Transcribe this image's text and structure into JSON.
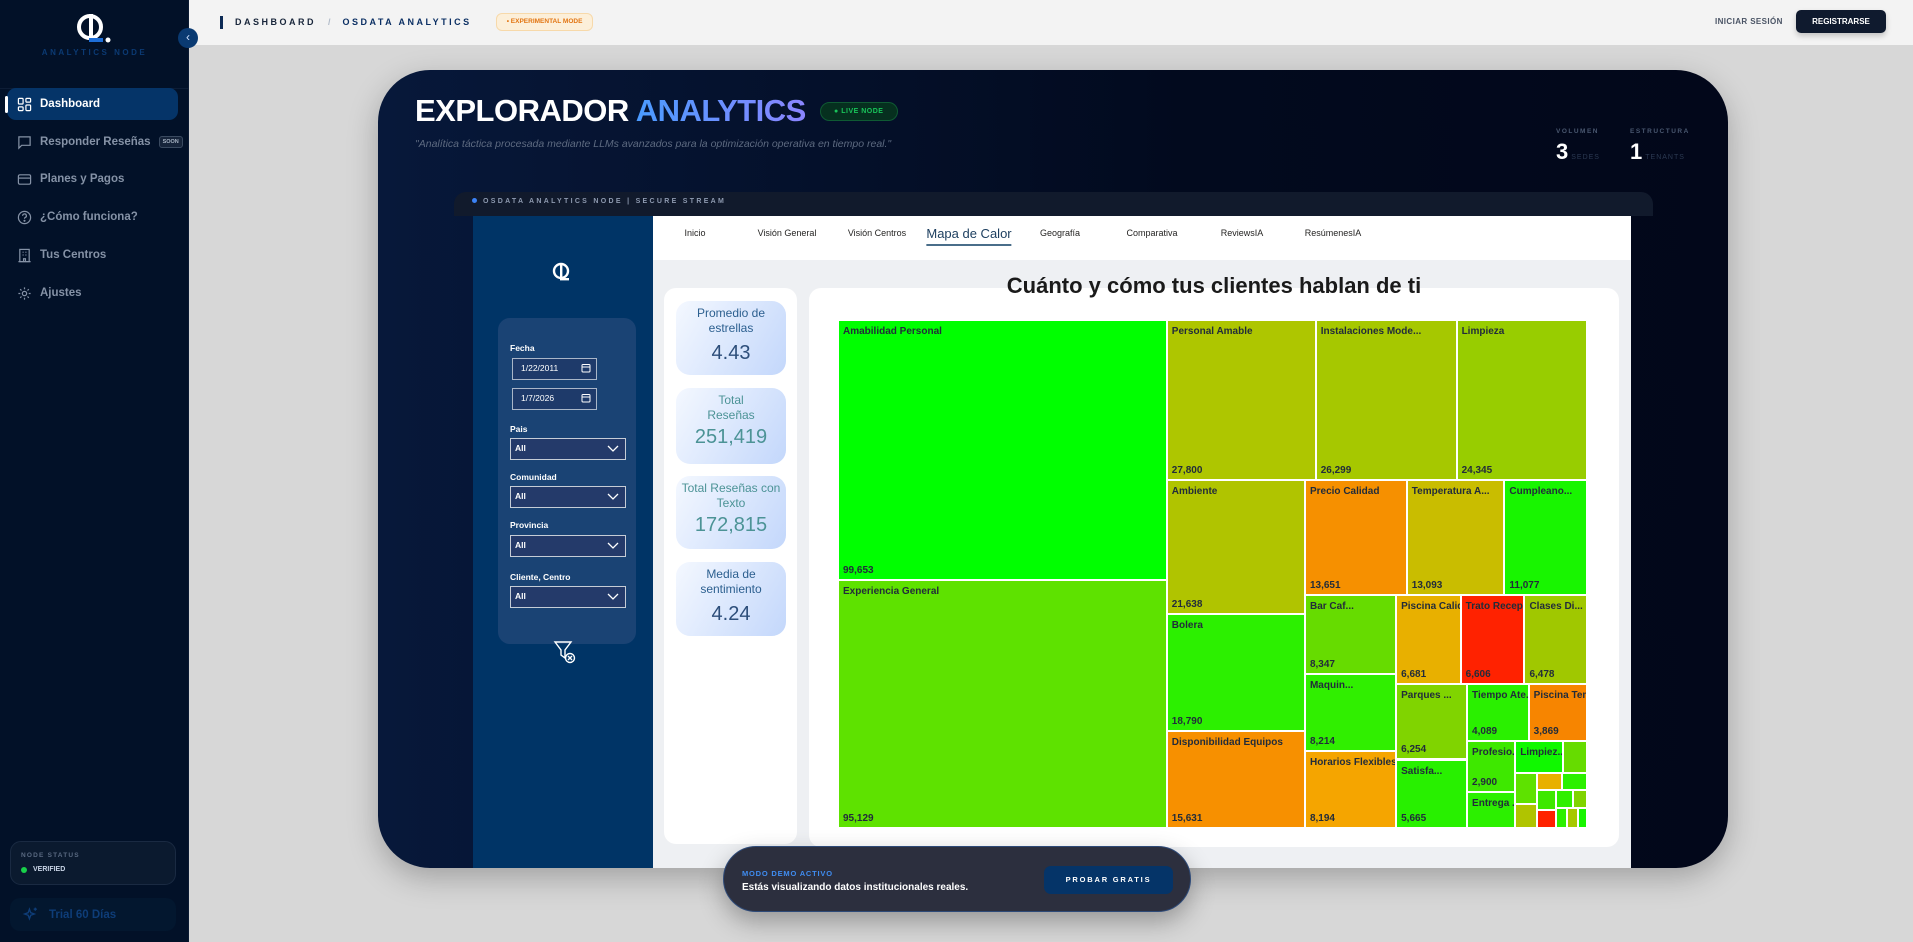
{
  "sidebar": {
    "brand": "ANALYTICS NODE",
    "items": [
      {
        "label": "Dashboard",
        "icon": "dashboard-grid-icon",
        "active": true
      },
      {
        "label": "Responder Reseñas",
        "icon": "message-icon",
        "badge": "SOON"
      },
      {
        "label": "Planes y Pagos",
        "icon": "credit-card-icon"
      },
      {
        "label": "¿Cómo funciona?",
        "icon": "help-circle-icon"
      },
      {
        "label": "Tus Centros",
        "icon": "building-icon"
      },
      {
        "label": "Ajustes",
        "icon": "gear-icon"
      }
    ],
    "node_status": {
      "title": "NODE STATUS",
      "value": "VERIFIED",
      "color": "#18d04a"
    },
    "trial": "Trial 60 Días"
  },
  "topbar": {
    "breadcrumb": [
      "DASHBOARD",
      "OSDATA ANALYTICS"
    ],
    "badge": "EXPERIMENTAL MODE",
    "login": "INICIAR SESIÓN",
    "register": "REGISTRARSE"
  },
  "hero": {
    "title_a": "EXPLORADOR",
    "title_b": "ANALYTICS",
    "live": "LIVE NODE",
    "subtitle": "\"Analítica táctica procesada mediante LLMs avanzados para la optimización operativa en tiempo real.\"",
    "stats": [
      {
        "label": "VOLUMEN",
        "value": "3",
        "unit": "SEDES"
      },
      {
        "label": "ESTRUCTURA",
        "value": "1",
        "unit": "TENANTS"
      }
    ],
    "stream": "OSDATA ANALYTICS NODE | SECURE STREAM"
  },
  "report": {
    "tabs": [
      "Inicio",
      "Visión General",
      "Visión Centros",
      "Mapa de Calor",
      "Geografía",
      "Comparativa",
      "ReviewsIA",
      "ResúmenesIA"
    ],
    "active_tab": "Mapa de Calor",
    "filters": {
      "fecha_label": "Fecha",
      "date_from": "1/22/2011",
      "date_to": "1/7/2026",
      "selects": [
        {
          "label": "Pais",
          "value": "All"
        },
        {
          "label": "Comunidad",
          "value": "All"
        },
        {
          "label": "Provincia",
          "value": "All"
        },
        {
          "label": "Cliente, Centro",
          "value": "All"
        }
      ]
    },
    "kpis": [
      {
        "label": "Promedio de estrellas",
        "value": "4.43"
      },
      {
        "label": "Total Reseñas",
        "value": "251,419"
      },
      {
        "label": "Total Reseñas con Texto",
        "value": "172,815"
      },
      {
        "label": "Media de sentimiento",
        "value": "4.24"
      }
    ]
  },
  "chart_data": {
    "type": "treemap",
    "title": "Cuánto y cómo tus clientes hablan de ti",
    "items": [
      {
        "label": "Amabilidad Personal",
        "value": 99653,
        "color": "#00ff00"
      },
      {
        "label": "Experiencia General",
        "value": 95129,
        "color": "#5ee200"
      },
      {
        "label": "Personal Amable",
        "value": 27800,
        "color": "#aec600"
      },
      {
        "label": "Instalaciones Mode...",
        "value": 26299,
        "color": "#a6c800"
      },
      {
        "label": "Limpieza",
        "value": 24345,
        "color": "#98cd00"
      },
      {
        "label": "Ambiente",
        "value": 21638,
        "color": "#b0c400"
      },
      {
        "label": "Bolera",
        "value": 18790,
        "color": "#2cf000"
      },
      {
        "label": "Disponibilidad Equipos",
        "value": 15631,
        "color": "#f79000"
      },
      {
        "label": "Precio Calidad",
        "value": 13651,
        "color": "#f69000"
      },
      {
        "label": "Temperatura A...",
        "value": 13093,
        "color": "#c9bd00"
      },
      {
        "label": "Cumpleano...",
        "value": 11077,
        "color": "#18f500"
      },
      {
        "label": "Bar Caf...",
        "value": 8347,
        "color": "#66dc00"
      },
      {
        "label": "Maquin...",
        "value": 8214,
        "color": "#30ef00"
      },
      {
        "label": "Horarios Flexibles",
        "value": 8194,
        "color": "#f5a500"
      },
      {
        "label": "Piscina Calidad",
        "value": 6681,
        "color": "#e8b000"
      },
      {
        "label": "Trato Recepcion",
        "value": 6606,
        "color": "#ff2200"
      },
      {
        "label": "Clases Di...",
        "value": 6478,
        "color": "#a0c800"
      },
      {
        "label": "Parques ...",
        "value": 6254,
        "color": "#80d400"
      },
      {
        "label": "Satisfa...",
        "value": 5665,
        "color": "#28f000"
      },
      {
        "label": "Tiempo Ate...",
        "value": 4089,
        "color": "#2af000"
      },
      {
        "label": "Piscina Tem...",
        "value": 3869,
        "color": "#f78500"
      },
      {
        "label": "Profesio...",
        "value": 2900,
        "color": "#3ee800"
      },
      {
        "label": "Entrega ...",
        "value": 2000,
        "color": "#2cf000"
      },
      {
        "label": "Limpiez...",
        "value": 1800,
        "color": "#10f800"
      },
      {
        "label": "",
        "value": 900,
        "color": "#66dc00"
      },
      {
        "label": "",
        "value": 800,
        "color": "#5ee200"
      },
      {
        "label": "",
        "value": 600,
        "color": "#b0c400"
      },
      {
        "label": "",
        "value": 500,
        "color": "#e8b000"
      },
      {
        "label": "",
        "value": 500,
        "color": "#2cf000"
      },
      {
        "label": "",
        "value": 450,
        "color": "#3ee800"
      },
      {
        "label": "",
        "value": 400,
        "color": "#ff2200"
      },
      {
        "label": "",
        "value": 350,
        "color": "#30ef00"
      },
      {
        "label": "",
        "value": 300,
        "color": "#80d400"
      },
      {
        "label": "",
        "value": 250,
        "color": "#2cf000"
      },
      {
        "label": "",
        "value": 250,
        "color": "#a6c800"
      },
      {
        "label": "",
        "value": 200,
        "color": "#18f500"
      }
    ]
  },
  "demo": {
    "title": "MODO DEMO ACTIVO",
    "text": "Estás visualizando datos institucionales reales.",
    "button": "PROBAR GRATIS"
  }
}
